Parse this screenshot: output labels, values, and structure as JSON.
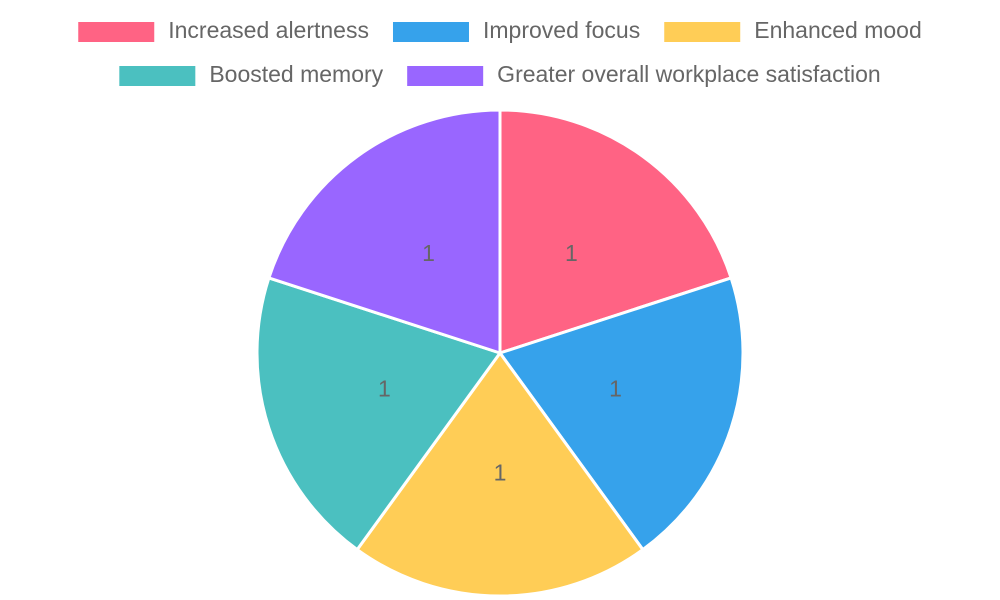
{
  "chart_data": {
    "type": "pie",
    "categories": [
      "Increased alertness",
      "Improved focus",
      "Enhanced mood",
      "Boosted memory",
      "Greater overall workplace satisfaction"
    ],
    "values": [
      1,
      1,
      1,
      1,
      1
    ],
    "colors": [
      "#ff6384",
      "#36a2eb",
      "#ffcd56",
      "#4bc0c0",
      "#9966ff"
    ],
    "legend": "top"
  }
}
